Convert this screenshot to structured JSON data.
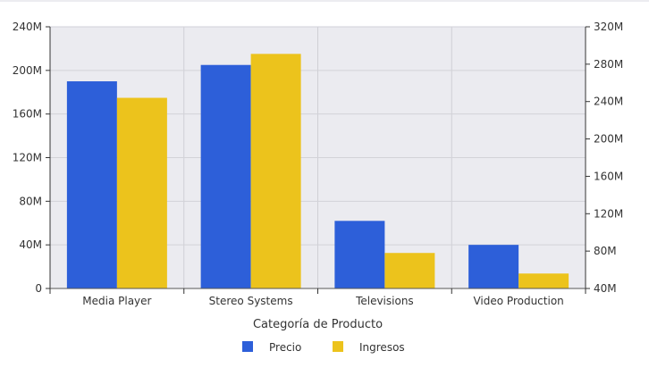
{
  "chart_data": {
    "type": "bar",
    "title": "",
    "xlabel": "Categoría de Producto",
    "ylabel": "",
    "categories": [
      "Media Player",
      "Stereo Systems",
      "Televisions",
      "Video Production"
    ],
    "series": [
      {
        "name": "Precio",
        "axis": "left",
        "color": "#2d5fd9",
        "values": [
          190,
          205,
          62,
          40
        ]
      },
      {
        "name": "Ingresos",
        "axis": "right",
        "color": "#ecc31c",
        "values": [
          244,
          291,
          78,
          56
        ]
      }
    ],
    "y_left": {
      "ylim": [
        0,
        240
      ],
      "ticks": [
        "0",
        "40M",
        "80M",
        "120M",
        "160M",
        "200M",
        "240M"
      ],
      "unit": "M"
    },
    "y_right": {
      "ylim": [
        40,
        320
      ],
      "ticks": [
        "40M",
        "80M",
        "120M",
        "160M",
        "200M",
        "240M",
        "280M",
        "320M"
      ],
      "unit": "M"
    },
    "grid": true,
    "plot_background": "#ebebf0",
    "legend_position": "bottom-center"
  }
}
